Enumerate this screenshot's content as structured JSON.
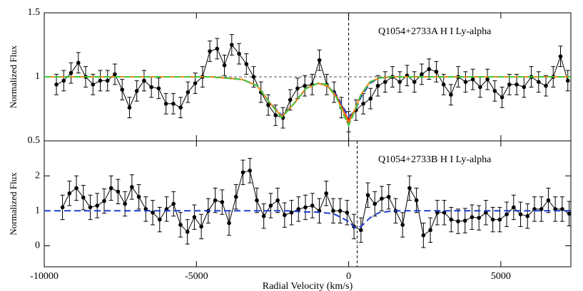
{
  "chart_data": [
    {
      "type": "line",
      "title": "Q1054+2733A H I Ly-alpha",
      "ylabel": "Normalized Flux",
      "xlim": [
        -10000,
        7300
      ],
      "ylim": [
        0.5,
        1.5
      ],
      "xticks": [
        -10000,
        -5000,
        0,
        5000
      ],
      "show_xtick_labels": false,
      "yticks": [
        0.5,
        1,
        1.5
      ],
      "vline": 0,
      "hline": 1,
      "series": [
        {
          "color": "#000000",
          "error": 0.08,
          "x": [
            -9600,
            -9360,
            -9120,
            -8880,
            -8640,
            -8400,
            -8160,
            -7920,
            -7680,
            -7440,
            -7200,
            -6960,
            -6720,
            -6480,
            -6240,
            -6000,
            -5760,
            -5520,
            -5280,
            -5040,
            -4800,
            -4560,
            -4320,
            -4080,
            -3840,
            -3600,
            -3360,
            -3120,
            -2880,
            -2640,
            -2400,
            -2160,
            -1920,
            -1680,
            -1440,
            -1200,
            -960,
            -720,
            -480,
            -240,
            0,
            240,
            480,
            720,
            960,
            1200,
            1440,
            1680,
            1920,
            2160,
            2400,
            2640,
            2880,
            3120,
            3360,
            3600,
            3840,
            4080,
            4320,
            4560,
            4800,
            5040,
            5280,
            5520,
            5760,
            6000,
            6240,
            6480,
            6720,
            6960,
            7200
          ],
          "values": [
            0.94,
            0.97,
            1.03,
            1.11,
            1.0,
            0.94,
            0.97,
            0.97,
            1.02,
            0.9,
            0.76,
            0.89,
            0.97,
            0.92,
            0.91,
            0.79,
            0.79,
            0.76,
            0.88,
            0.95,
            1.0,
            1.2,
            1.22,
            1.09,
            1.25,
            1.18,
            1.1,
            1.0,
            0.88,
            0.78,
            0.7,
            0.68,
            0.82,
            0.91,
            0.93,
            0.94,
            1.13,
            0.94,
            0.88,
            0.76,
            0.65,
            0.74,
            0.79,
            0.83,
            0.93,
            0.96,
            1.0,
            0.96,
            1.01,
            0.96,
            1.02,
            1.06,
            1.04,
            0.94,
            0.86,
            1.0,
            0.96,
            0.98,
            0.92,
            0.98,
            0.89,
            0.84,
            0.94,
            0.94,
            0.92,
            1.0,
            0.96,
            0.93,
            1.0,
            1.16,
            0.97
          ]
        },
        {
          "color": "#1f3fd0",
          "dash": true,
          "x": [
            -10000,
            -4500,
            -4000,
            -3500,
            -3000,
            -2600,
            -2200,
            -1800,
            -1400,
            -1000,
            -700,
            -400,
            -200,
            0,
            200,
            400,
            700,
            1000,
            1400,
            7300
          ],
          "values": [
            1,
            1,
            0.99,
            0.98,
            0.93,
            0.8,
            0.7,
            0.79,
            0.91,
            0.95,
            0.93,
            0.86,
            0.77,
            0.69,
            0.73,
            0.84,
            0.95,
            0.99,
            1,
            1
          ]
        },
        {
          "color": "#d62020",
          "dash": false,
          "x": [
            -10000,
            -4500,
            -4000,
            -3500,
            -3000,
            -2600,
            -2200,
            -1800,
            -1400,
            -1000,
            -700,
            -400,
            -200,
            0,
            200,
            400,
            700,
            1000,
            1400,
            7300
          ],
          "values": [
            1,
            1,
            0.99,
            0.98,
            0.93,
            0.8,
            0.69,
            0.79,
            0.91,
            0.95,
            0.93,
            0.85,
            0.75,
            0.66,
            0.74,
            0.86,
            0.96,
            0.99,
            1,
            1
          ]
        },
        {
          "color": "#f08a10",
          "dash": false,
          "x": [
            -10000,
            -4500,
            -4000,
            -3500,
            -3000,
            -2600,
            -2200,
            -1800,
            -1400,
            -1000,
            -700,
            -400,
            -200,
            0,
            200,
            400,
            700,
            1000,
            1400,
            7300
          ],
          "values": [
            1,
            1,
            0.99,
            0.98,
            0.93,
            0.8,
            0.69,
            0.79,
            0.91,
            0.95,
            0.93,
            0.84,
            0.74,
            0.64,
            0.74,
            0.86,
            0.96,
            0.99,
            1,
            1
          ]
        },
        {
          "color": "#3ec83e",
          "dash": true,
          "x": [
            -10000,
            -4500,
            -4000,
            -3500,
            -3000,
            -2600,
            -2200,
            -1800,
            -1400,
            -1000,
            -700,
            -400,
            -200,
            0,
            200,
            400,
            700,
            1000,
            1400,
            7300
          ],
          "values": [
            1,
            1,
            0.99,
            0.98,
            0.93,
            0.8,
            0.68,
            0.79,
            0.91,
            0.95,
            0.94,
            0.84,
            0.72,
            0.62,
            0.73,
            0.86,
            0.96,
            0.99,
            1,
            1
          ]
        }
      ]
    },
    {
      "type": "line",
      "title": "Q1054+2733B H I Ly-alpha",
      "ylabel": "Normalized Flux",
      "xlabel": "Radial Velocity (km/s)",
      "xlim": [
        -10000,
        7300
      ],
      "ylim": [
        -0.6,
        3.0
      ],
      "xticks": [
        -10000,
        -5000,
        0,
        5000
      ],
      "show_xtick_labels": true,
      "yticks": [
        0,
        1,
        2
      ],
      "vline": 280,
      "series": [
        {
          "color": "#000000",
          "error": 0.35,
          "x": [
            -9400,
            -9172,
            -8944,
            -8716,
            -8488,
            -8260,
            -8032,
            -7804,
            -7576,
            -7348,
            -7120,
            -6892,
            -6664,
            -6436,
            -6208,
            -5980,
            -5752,
            -5524,
            -5296,
            -5068,
            -4840,
            -4612,
            -4384,
            -4156,
            -3928,
            -3700,
            -3472,
            -3244,
            -3016,
            -2788,
            -2560,
            -2332,
            -2104,
            -1876,
            -1648,
            -1420,
            -1192,
            -964,
            -736,
            -508,
            -280,
            -52,
            176,
            404,
            632,
            860,
            1088,
            1316,
            1544,
            1772,
            2000,
            2228,
            2456,
            2684,
            2912,
            3140,
            3368,
            3596,
            3824,
            4052,
            4280,
            4508,
            4736,
            4964,
            5192,
            5420,
            5648,
            5876,
            6104,
            6332,
            6560,
            6788,
            7016,
            7244
          ],
          "values": [
            1.1,
            1.5,
            1.65,
            1.38,
            1.1,
            1.15,
            1.28,
            1.65,
            1.55,
            1.2,
            1.68,
            1.4,
            1.05,
            0.95,
            0.75,
            1.05,
            1.2,
            0.6,
            0.4,
            0.82,
            0.55,
            1.0,
            1.3,
            1.25,
            0.65,
            1.4,
            2.1,
            2.15,
            1.3,
            0.85,
            1.15,
            1.3,
            0.88,
            0.95,
            1.05,
            1.1,
            1.15,
            1.0,
            1.5,
            1.0,
            1.0,
            0.95,
            0.55,
            0.45,
            1.45,
            1.2,
            1.35,
            1.4,
            1.0,
            0.6,
            1.65,
            1.3,
            0.3,
            0.45,
            0.95,
            0.95,
            0.75,
            0.7,
            0.72,
            0.82,
            0.8,
            0.95,
            0.75,
            0.75,
            0.9,
            1.1,
            0.9,
            0.85,
            1.05,
            1.05,
            1.3,
            1.05,
            1.05,
            0.92
          ]
        },
        {
          "color": "#1f3fd0",
          "dash": true,
          "x": [
            -10000,
            -2000,
            -1500,
            -1000,
            -500,
            0,
            200,
            400,
            700,
            1000,
            1500,
            7300
          ],
          "values": [
            1,
            1,
            0.97,
            0.96,
            0.92,
            0.7,
            0.52,
            0.55,
            0.8,
            0.95,
            1,
            1
          ]
        }
      ]
    }
  ]
}
